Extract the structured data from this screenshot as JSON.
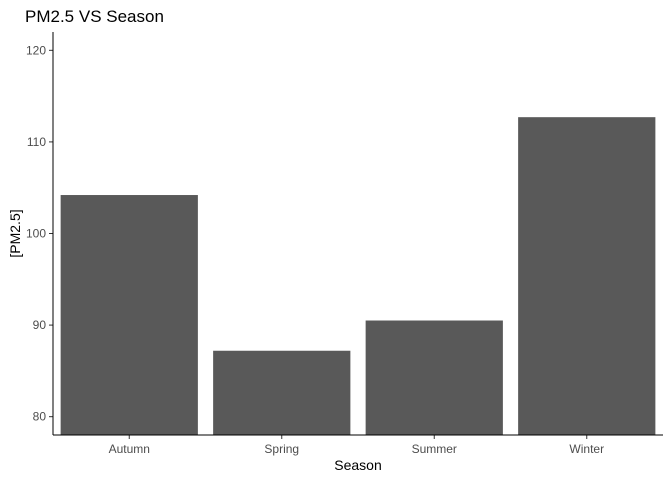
{
  "chart_data": {
    "type": "bar",
    "title": "PM2.5 VS Season",
    "xlabel": "Season",
    "ylabel": "[PM2.5]",
    "categories": [
      "Autumn",
      "Spring",
      "Summer",
      "Winter"
    ],
    "values": [
      104.2,
      87.2,
      90.5,
      112.7
    ],
    "ylim": [
      78,
      122
    ],
    "yticks": [
      80,
      90,
      100,
      110,
      120
    ],
    "bar_color": "#595959",
    "grid": false,
    "legend": "none"
  }
}
